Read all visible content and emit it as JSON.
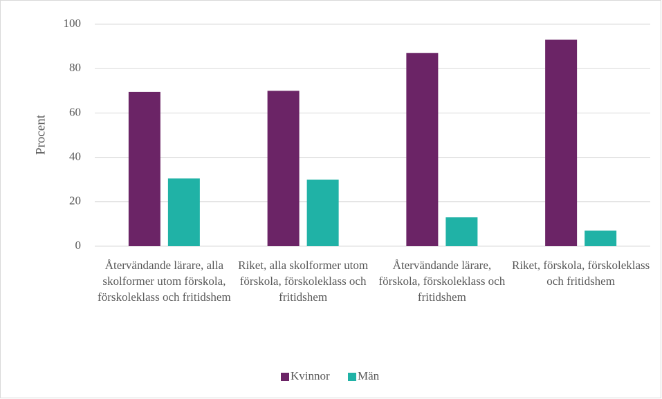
{
  "chart_data": {
    "type": "bar",
    "y_label": "Procent",
    "categories": [
      "Återvändande lärare, alla skolformer utom förskola, förskoleklass och fritidshem",
      "Riket, alla skolformer utom förskola, förskoleklass och fritidshem",
      "Återvändande lärare, förskola, förskoleklass och fritidshem",
      "Riket, förskola, förskoleklass och fritidshem"
    ],
    "series": [
      {
        "name": "Kvinnor",
        "color": "#6b2466",
        "values": [
          69.5,
          70,
          87,
          93
        ]
      },
      {
        "name": "Män",
        "color": "#20b2a6",
        "values": [
          30.5,
          30,
          13,
          7
        ]
      }
    ],
    "ylim": [
      0,
      100
    ],
    "yticks": [
      0,
      20,
      40,
      60,
      80,
      100
    ],
    "grid": true,
    "legend": "bottom"
  }
}
